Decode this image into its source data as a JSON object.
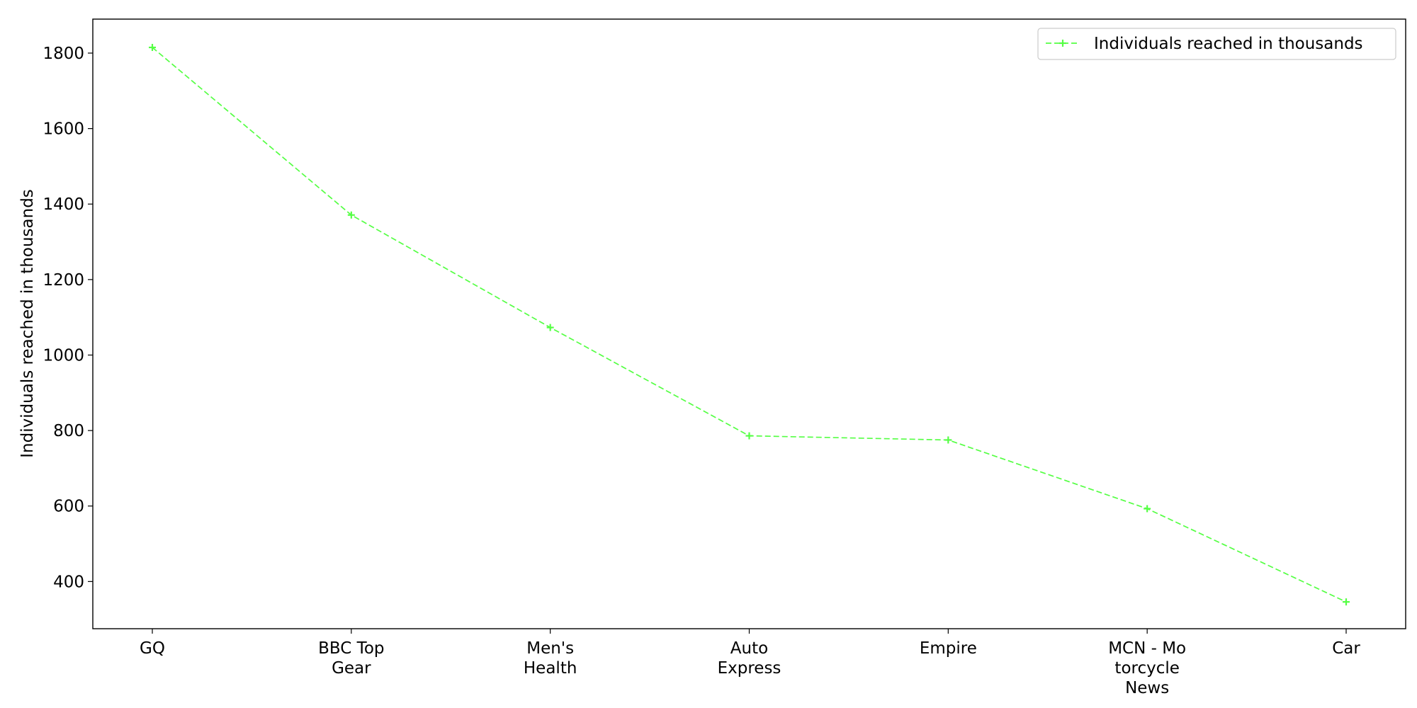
{
  "chart_data": {
    "type": "line",
    "title": "",
    "xlabel": "",
    "ylabel": "Individuals reached in thousands",
    "categories": [
      [
        "GQ"
      ],
      [
        "BBC Top",
        "Gear"
      ],
      [
        "Men's",
        "Health"
      ],
      [
        "Auto",
        "Express"
      ],
      [
        "Empire"
      ],
      [
        "MCN - Mo",
        "torcycle",
        "News"
      ],
      [
        "Car"
      ]
    ],
    "series": [
      {
        "name": "Individuals reached in thousands",
        "values": [
          1815,
          1371,
          1073,
          786,
          775,
          593,
          346
        ],
        "color": "#55ff44",
        "line_style": "dashed",
        "marker": "plus"
      }
    ],
    "y_ticks": [
      400,
      600,
      800,
      1000,
      1200,
      1400,
      1600,
      1800
    ],
    "ylim": [
      275,
      1890
    ],
    "grid": false,
    "legend_position": "top-right"
  }
}
